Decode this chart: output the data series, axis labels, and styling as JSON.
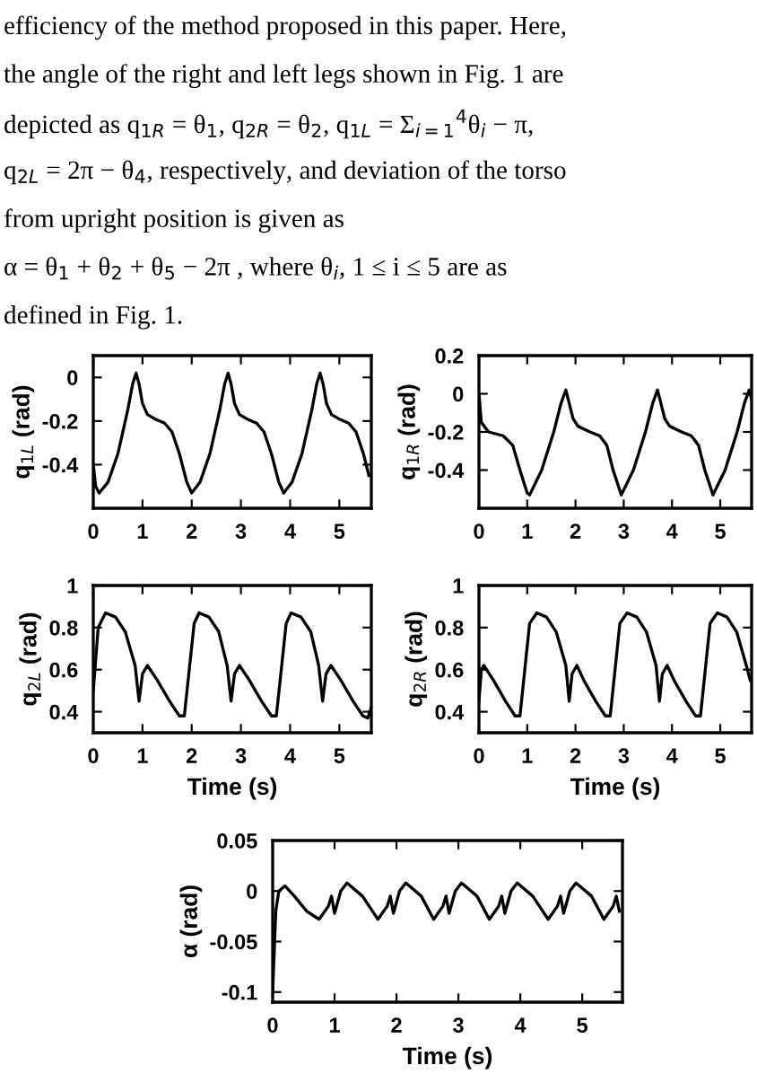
{
  "chart_data": [
    {
      "type": "other",
      "annotations": [
        "efficiency of the method proposed in this paper. Here,",
        "the angle of the right and left legs shown in Fig. 1 are",
        "depicted as q$_{1R}$ = θ$_{1}$, q$_{2R}$ = θ$_{2}$, q$_{1L}$ = Σ$_{i=1}$$^{4}$θ$_{i}$ − π,",
        "q$_{2L}$ = 2π − θ$_{4}$, respectively, and deviation of the torso",
        "from upright position is given as",
        "α = θ$_{1}$ + θ$_{2}$ + θ$_{5}$ − 2π , where θ$_{i}$, 1 ≤ i ≤ 5 are as",
        "defined in Fig. 1."
      ]
    },
    {
      "type": "line",
      "ylabel": "q$_{1L}$ (rad)",
      "xlim": [
        0,
        5.65
      ],
      "ylim": [
        -0.6,
        0.1
      ],
      "xticks": [
        0,
        1,
        2,
        3,
        4,
        5
      ],
      "yticks": [
        -0.4,
        -0.2,
        0
      ],
      "grid": false,
      "series": [
        {
          "color": "#000000",
          "x": [
            0,
            0.05,
            0.12,
            0.3,
            0.5,
            0.7,
            0.8,
            0.87,
            0.93,
            1.0,
            1.1,
            1.25,
            1.45,
            1.6,
            1.75,
            1.9,
            2.0,
            2.17,
            2.37,
            2.57,
            2.67,
            2.74,
            2.8,
            2.87,
            2.97,
            3.12,
            3.32,
            3.47,
            3.62,
            3.77,
            3.87,
            4.04,
            4.24,
            4.44,
            4.54,
            4.61,
            4.67,
            4.74,
            4.84,
            4.99,
            5.19,
            5.34,
            5.49,
            5.6
          ],
          "values": [
            -0.4,
            -0.5,
            -0.53,
            -0.48,
            -0.35,
            -0.15,
            -0.03,
            0.02,
            -0.03,
            -0.12,
            -0.17,
            -0.19,
            -0.21,
            -0.25,
            -0.35,
            -0.48,
            -0.53,
            -0.48,
            -0.35,
            -0.15,
            -0.03,
            0.02,
            -0.03,
            -0.12,
            -0.17,
            -0.19,
            -0.21,
            -0.25,
            -0.35,
            -0.48,
            -0.53,
            -0.48,
            -0.35,
            -0.15,
            -0.03,
            0.02,
            -0.03,
            -0.12,
            -0.17,
            -0.19,
            -0.21,
            -0.25,
            -0.35,
            -0.45
          ]
        }
      ]
    },
    {
      "type": "line",
      "ylabel": "q$_{1R}$ (rad)",
      "xlim": [
        0,
        5.65
      ],
      "ylim": [
        -0.6,
        0.2
      ],
      "xticks": [
        0,
        1,
        2,
        3,
        4,
        5
      ],
      "yticks": [
        -0.4,
        -0.2,
        0,
        0.2
      ],
      "grid": false,
      "series": [
        {
          "color": "#000000",
          "x": [
            0,
            0.05,
            0.2,
            0.5,
            0.7,
            0.85,
            1.0,
            1.05,
            1.3,
            1.55,
            1.7,
            1.8,
            1.87,
            1.95,
            2.05,
            2.3,
            2.5,
            2.65,
            2.78,
            2.95,
            3.2,
            3.45,
            3.6,
            3.7,
            3.77,
            3.85,
            3.95,
            4.2,
            4.4,
            4.55,
            4.68,
            4.85,
            5.1,
            5.35,
            5.5,
            5.6,
            5.65
          ],
          "values": [
            0.0,
            -0.15,
            -0.2,
            -0.22,
            -0.27,
            -0.4,
            -0.52,
            -0.53,
            -0.4,
            -0.2,
            -0.05,
            0.02,
            -0.05,
            -0.13,
            -0.17,
            -0.2,
            -0.22,
            -0.27,
            -0.4,
            -0.53,
            -0.4,
            -0.2,
            -0.05,
            0.02,
            -0.05,
            -0.13,
            -0.17,
            -0.2,
            -0.22,
            -0.27,
            -0.4,
            -0.53,
            -0.4,
            -0.2,
            -0.05,
            0.02,
            -0.03
          ]
        }
      ]
    },
    {
      "type": "line",
      "ylabel": "q$_{2L}$ (rad)",
      "xlabel": "Time (s)",
      "xlim": [
        0,
        5.65
      ],
      "ylim": [
        0.3,
        1
      ],
      "xticks": [
        0,
        1,
        2,
        3,
        4,
        5
      ],
      "yticks": [
        0.4,
        0.6,
        0.8,
        1
      ],
      "grid": false,
      "series": [
        {
          "color": "#000000",
          "x": [
            0,
            0.1,
            0.25,
            0.45,
            0.65,
            0.85,
            0.93,
            1.0,
            1.1,
            1.3,
            1.55,
            1.75,
            1.85,
            1.95,
            2.05,
            2.15,
            2.35,
            2.55,
            2.72,
            2.8,
            2.87,
            2.97,
            3.17,
            3.42,
            3.62,
            3.72,
            3.82,
            3.92,
            4.02,
            4.22,
            4.42,
            4.58,
            4.66,
            4.73,
            4.83,
            5.03,
            5.28,
            5.48,
            5.58,
            5.65
          ],
          "values": [
            0.5,
            0.8,
            0.87,
            0.85,
            0.78,
            0.62,
            0.45,
            0.58,
            0.62,
            0.55,
            0.45,
            0.38,
            0.38,
            0.6,
            0.82,
            0.87,
            0.85,
            0.78,
            0.62,
            0.45,
            0.58,
            0.62,
            0.55,
            0.45,
            0.38,
            0.38,
            0.6,
            0.82,
            0.87,
            0.85,
            0.78,
            0.62,
            0.45,
            0.58,
            0.62,
            0.55,
            0.45,
            0.38,
            0.37,
            0.42
          ]
        }
      ]
    },
    {
      "type": "line",
      "ylabel": "q$_{2R}$ (rad)",
      "xlabel": "Time (s)",
      "xlim": [
        0,
        5.65
      ],
      "ylim": [
        0.3,
        1
      ],
      "xticks": [
        0,
        1,
        2,
        3,
        4,
        5
      ],
      "yticks": [
        0.4,
        0.6,
        0.8,
        1
      ],
      "grid": false,
      "series": [
        {
          "color": "#000000",
          "x": [
            0,
            0.05,
            0.1,
            0.3,
            0.55,
            0.75,
            0.85,
            0.95,
            1.05,
            1.2,
            1.4,
            1.6,
            1.8,
            1.87,
            1.93,
            2.03,
            2.17,
            2.42,
            2.62,
            2.72,
            2.82,
            2.92,
            3.07,
            3.27,
            3.47,
            3.67,
            3.74,
            3.8,
            3.9,
            4.04,
            4.29,
            4.49,
            4.59,
            4.69,
            4.79,
            4.94,
            5.14,
            5.34,
            5.54,
            5.62
          ],
          "values": [
            0.45,
            0.6,
            0.62,
            0.55,
            0.45,
            0.38,
            0.38,
            0.6,
            0.82,
            0.87,
            0.85,
            0.78,
            0.62,
            0.45,
            0.58,
            0.62,
            0.55,
            0.45,
            0.38,
            0.38,
            0.6,
            0.82,
            0.87,
            0.85,
            0.78,
            0.62,
            0.45,
            0.58,
            0.62,
            0.55,
            0.45,
            0.38,
            0.38,
            0.6,
            0.82,
            0.87,
            0.85,
            0.78,
            0.62,
            0.55
          ]
        }
      ]
    },
    {
      "type": "line",
      "ylabel": "α (rad)",
      "xlabel": "Time (s)",
      "xlim": [
        0,
        5.65
      ],
      "ylim": [
        -0.11,
        0.05
      ],
      "xticks": [
        0,
        1,
        2,
        3,
        4,
        5
      ],
      "yticks": [
        -0.1,
        -0.05,
        0,
        0.05
      ],
      "grid": false,
      "series": [
        {
          "color": "#000000",
          "x": [
            0,
            0.05,
            0.1,
            0.2,
            0.35,
            0.55,
            0.75,
            0.9,
            0.95,
            1.0,
            1.1,
            1.2,
            1.45,
            1.7,
            1.85,
            1.9,
            1.95,
            2.05,
            2.15,
            2.4,
            2.6,
            2.75,
            2.8,
            2.85,
            2.95,
            3.05,
            3.3,
            3.5,
            3.65,
            3.7,
            3.75,
            3.85,
            3.95,
            4.2,
            4.45,
            4.6,
            4.65,
            4.7,
            4.8,
            4.9,
            5.15,
            5.35,
            5.5,
            5.55,
            5.6
          ],
          "values": [
            -0.1,
            -0.02,
            0.0,
            0.005,
            -0.005,
            -0.02,
            -0.028,
            -0.015,
            -0.005,
            -0.022,
            0.0,
            0.008,
            -0.005,
            -0.028,
            -0.015,
            -0.005,
            -0.022,
            0.0,
            0.008,
            -0.005,
            -0.028,
            -0.015,
            -0.005,
            -0.022,
            0.0,
            0.008,
            -0.005,
            -0.028,
            -0.015,
            -0.005,
            -0.022,
            0.0,
            0.008,
            -0.005,
            -0.028,
            -0.015,
            -0.005,
            -0.022,
            0.0,
            0.008,
            -0.005,
            -0.028,
            -0.015,
            -0.005,
            -0.02
          ]
        }
      ]
    }
  ]
}
